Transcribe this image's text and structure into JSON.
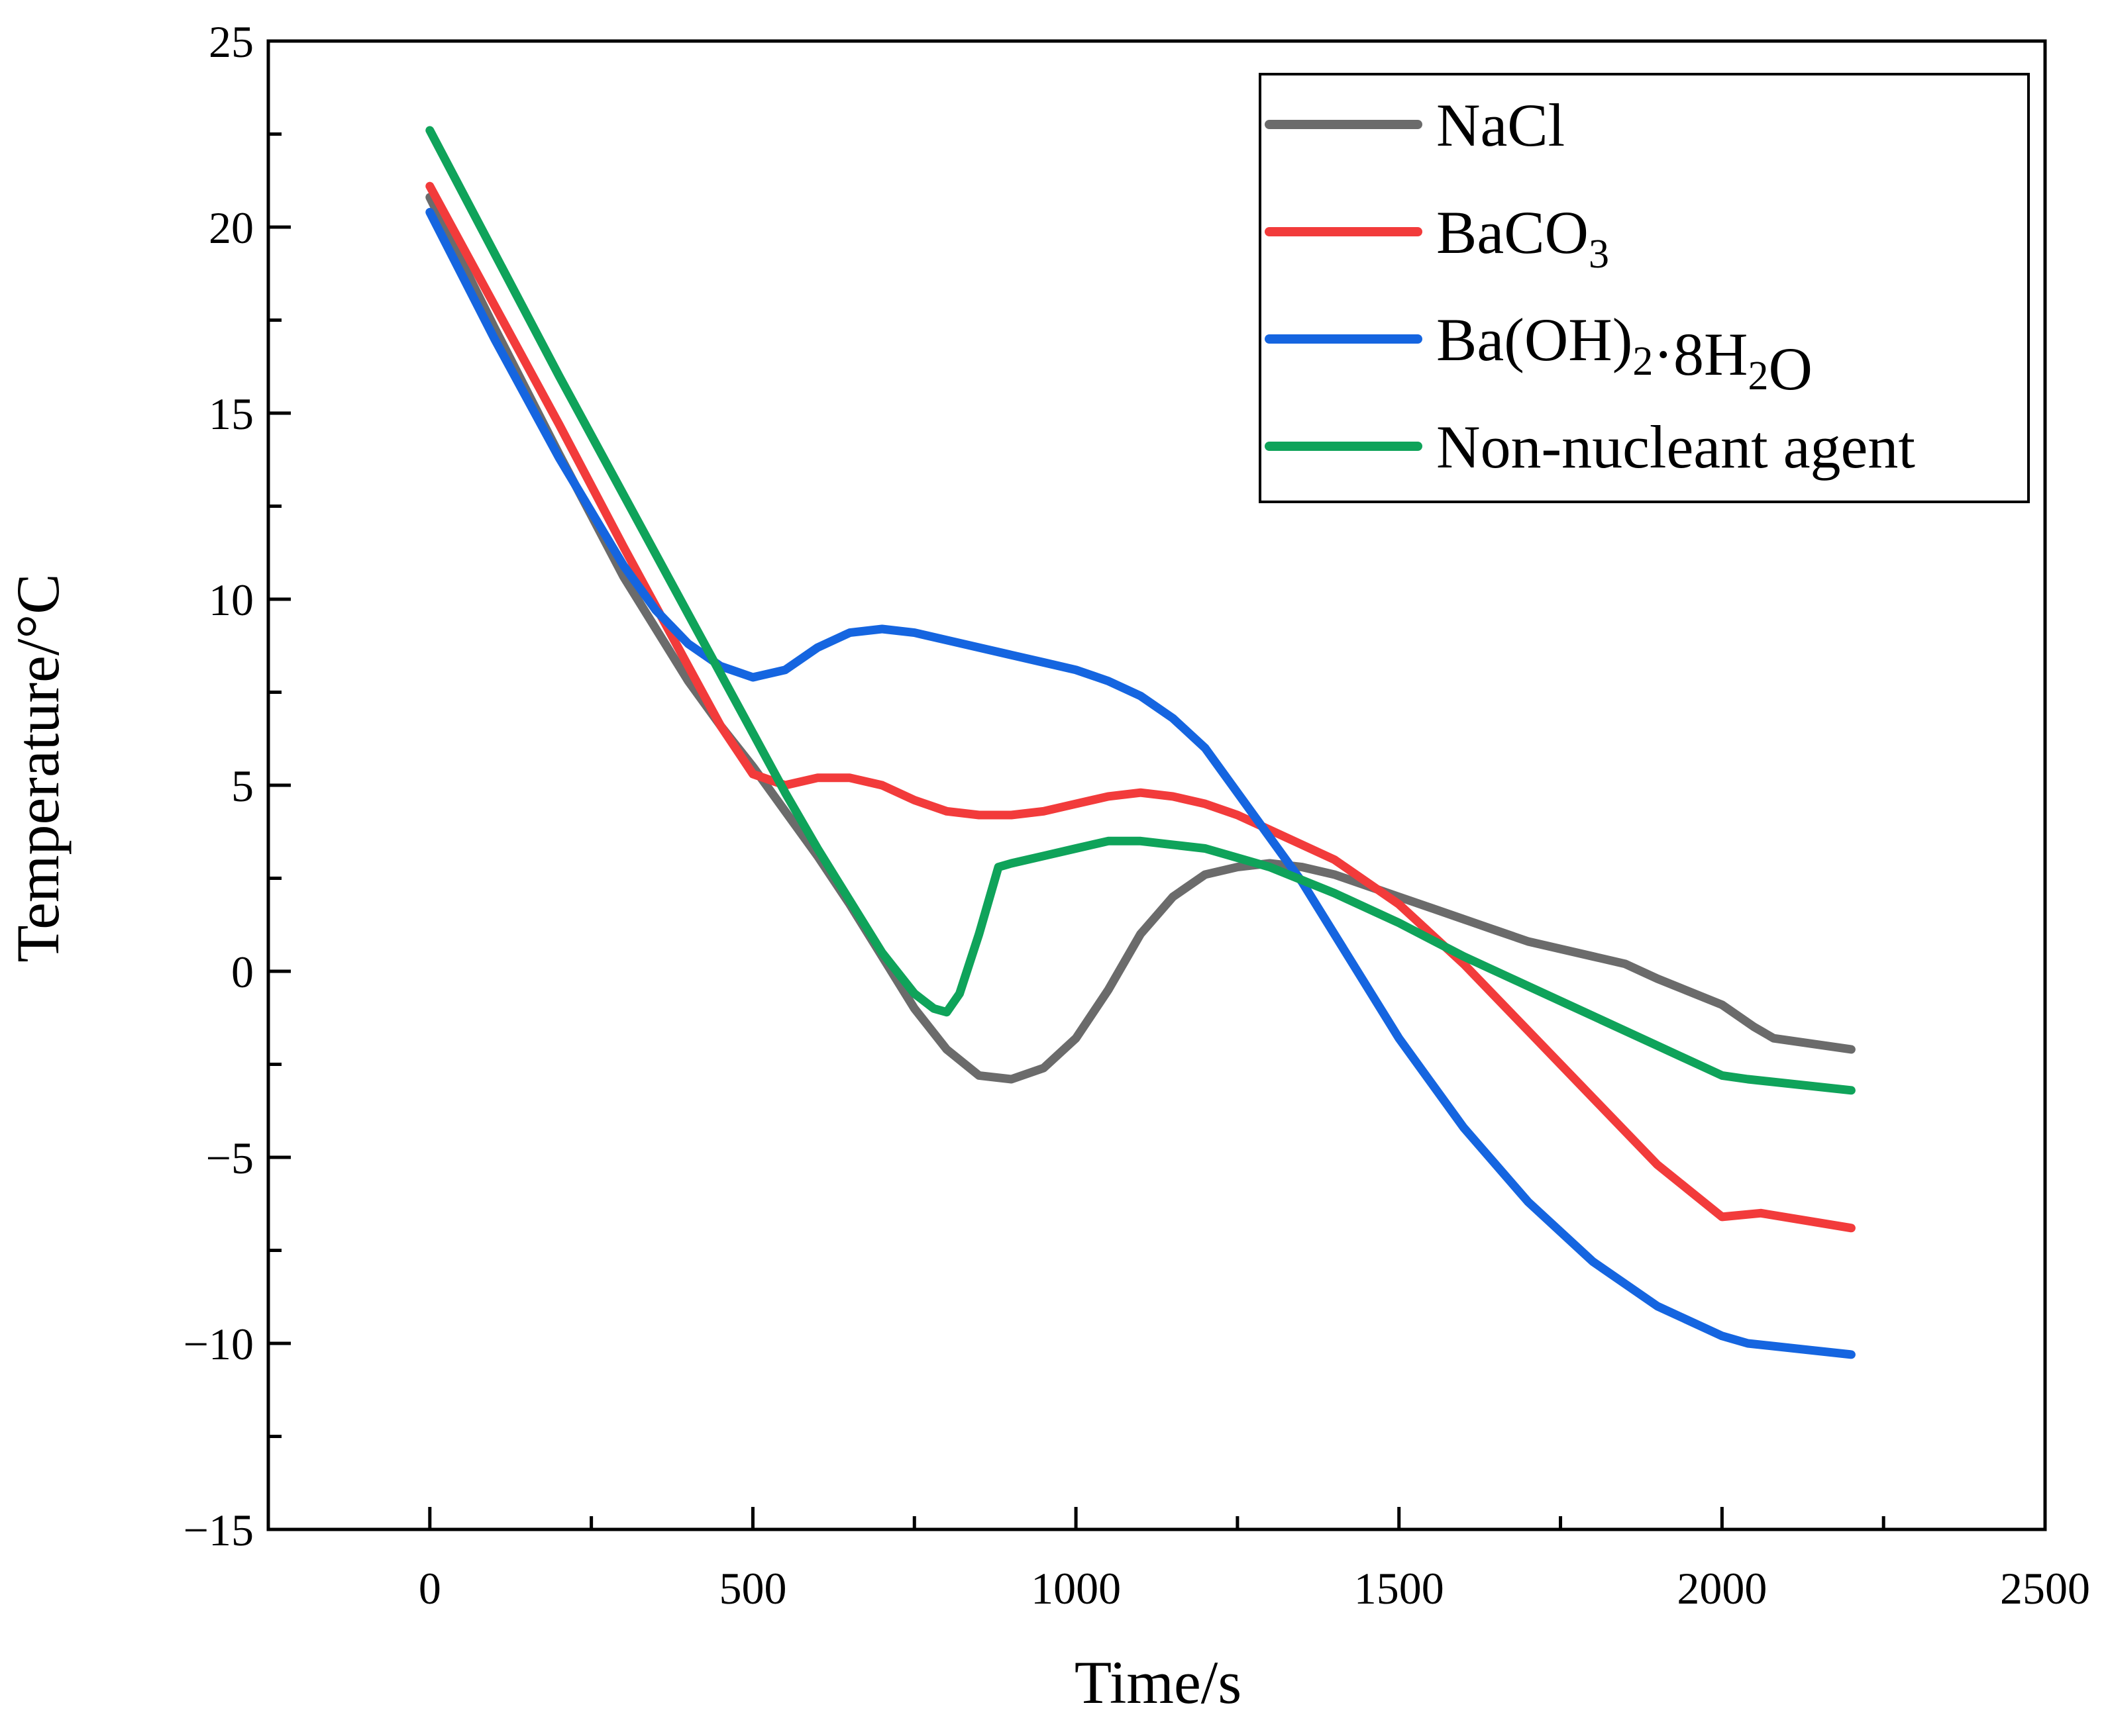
{
  "chart_data": {
    "type": "line",
    "title": "",
    "xlabel": "Time/s",
    "ylabel": "Temperature/°C",
    "xlim": [
      -250,
      2500
    ],
    "ylim": [
      -15,
      25
    ],
    "xticks": [
      0,
      500,
      1000,
      1500,
      2000,
      2500
    ],
    "yticks": [
      -15,
      -10,
      -5,
      0,
      5,
      10,
      15,
      20,
      25
    ],
    "xtick_labels": [
      "0",
      "500",
      "1000",
      "1500",
      "2000",
      "2500"
    ],
    "ytick_labels": [
      "−15",
      "−10",
      "−5",
      "0",
      "5",
      "10",
      "15",
      "20",
      "25"
    ],
    "grid": false,
    "legend_position": "top-right",
    "series": [
      {
        "name": "NaCl",
        "legend_parts": [
          {
            "t": "NaCl",
            "sub": false
          }
        ],
        "color": "#6b6b6b",
        "x": [
          0,
          100,
          200,
          300,
          400,
          450,
          500,
          550,
          600,
          650,
          700,
          750,
          800,
          850,
          900,
          950,
          1000,
          1050,
          1100,
          1150,
          1200,
          1250,
          1300,
          1350,
          1400,
          1500,
          1600,
          1650,
          1700,
          1800,
          1850,
          1900,
          2000,
          2050,
          2080,
          2200
        ],
        "y": [
          20.8,
          17.3,
          13.9,
          10.6,
          7.8,
          6.6,
          5.5,
          4.3,
          3.1,
          1.8,
          0.4,
          -1.0,
          -2.1,
          -2.8,
          -2.9,
          -2.6,
          -1.8,
          -0.5,
          1.0,
          2.0,
          2.6,
          2.8,
          2.9,
          2.8,
          2.6,
          2.0,
          1.4,
          1.1,
          0.8,
          0.4,
          0.2,
          -0.2,
          -0.9,
          -1.5,
          -1.8,
          -2.1
        ]
      },
      {
        "name": "BaCO3",
        "legend_parts": [
          {
            "t": "BaCO",
            "sub": false
          },
          {
            "t": "3",
            "sub": true
          }
        ],
        "color": "#f23b3b",
        "x": [
          0,
          100,
          200,
          300,
          400,
          450,
          500,
          550,
          600,
          650,
          700,
          750,
          800,
          850,
          900,
          950,
          1000,
          1050,
          1100,
          1150,
          1200,
          1250,
          1300,
          1350,
          1400,
          1500,
          1600,
          1700,
          1800,
          1900,
          2000,
          2060,
          2200
        ],
        "y": [
          21.1,
          17.9,
          14.7,
          11.4,
          8.2,
          6.6,
          5.3,
          5.0,
          5.2,
          5.2,
          5.0,
          4.6,
          4.3,
          4.2,
          4.2,
          4.3,
          4.5,
          4.7,
          4.8,
          4.7,
          4.5,
          4.2,
          3.8,
          3.4,
          3.0,
          1.8,
          0.2,
          -1.6,
          -3.4,
          -5.2,
          -6.6,
          -6.5,
          -6.9
        ]
      },
      {
        "name": "Ba(OH)2·8H2O",
        "legend_parts": [
          {
            "t": "Ba(OH)",
            "sub": false
          },
          {
            "t": "2",
            "sub": true
          },
          {
            "t": "·8H",
            "sub": false
          },
          {
            "t": "2",
            "sub": true
          },
          {
            "t": "O",
            "sub": false
          }
        ],
        "color": "#1565e0",
        "x": [
          0,
          100,
          200,
          300,
          350,
          400,
          450,
          500,
          550,
          600,
          650,
          700,
          750,
          800,
          850,
          900,
          950,
          1000,
          1050,
          1100,
          1150,
          1200,
          1250,
          1300,
          1350,
          1400,
          1500,
          1600,
          1700,
          1800,
          1900,
          2000,
          2040,
          2200
        ],
        "y": [
          20.4,
          17.0,
          13.8,
          10.9,
          9.7,
          8.8,
          8.2,
          7.9,
          8.1,
          8.7,
          9.1,
          9.2,
          9.1,
          8.9,
          8.7,
          8.5,
          8.3,
          8.1,
          7.8,
          7.4,
          6.8,
          6.0,
          4.8,
          3.6,
          2.4,
          1.0,
          -1.8,
          -4.2,
          -6.2,
          -7.8,
          -9.0,
          -9.8,
          -10.0,
          -10.3
        ]
      },
      {
        "name": "Non-nucleant agent",
        "legend_parts": [
          {
            "t": "Non-nucleant agent",
            "sub": false
          }
        ],
        "color": "#0fa35a",
        "x": [
          0,
          100,
          200,
          300,
          400,
          450,
          500,
          550,
          600,
          650,
          700,
          750,
          780,
          800,
          820,
          850,
          880,
          900,
          950,
          1000,
          1050,
          1100,
          1150,
          1200,
          1300,
          1400,
          1500,
          1600,
          1700,
          1800,
          1900,
          2000,
          2040,
          2200
        ],
        "y": [
          22.6,
          19.3,
          16.0,
          12.8,
          9.6,
          8.0,
          6.4,
          4.8,
          3.3,
          1.9,
          0.5,
          -0.6,
          -1.0,
          -1.1,
          -0.6,
          1.0,
          2.8,
          2.9,
          3.1,
          3.3,
          3.5,
          3.5,
          3.4,
          3.3,
          2.8,
          2.1,
          1.3,
          0.4,
          -0.4,
          -1.2,
          -2.0,
          -2.8,
          -2.9,
          -3.2
        ]
      }
    ]
  }
}
